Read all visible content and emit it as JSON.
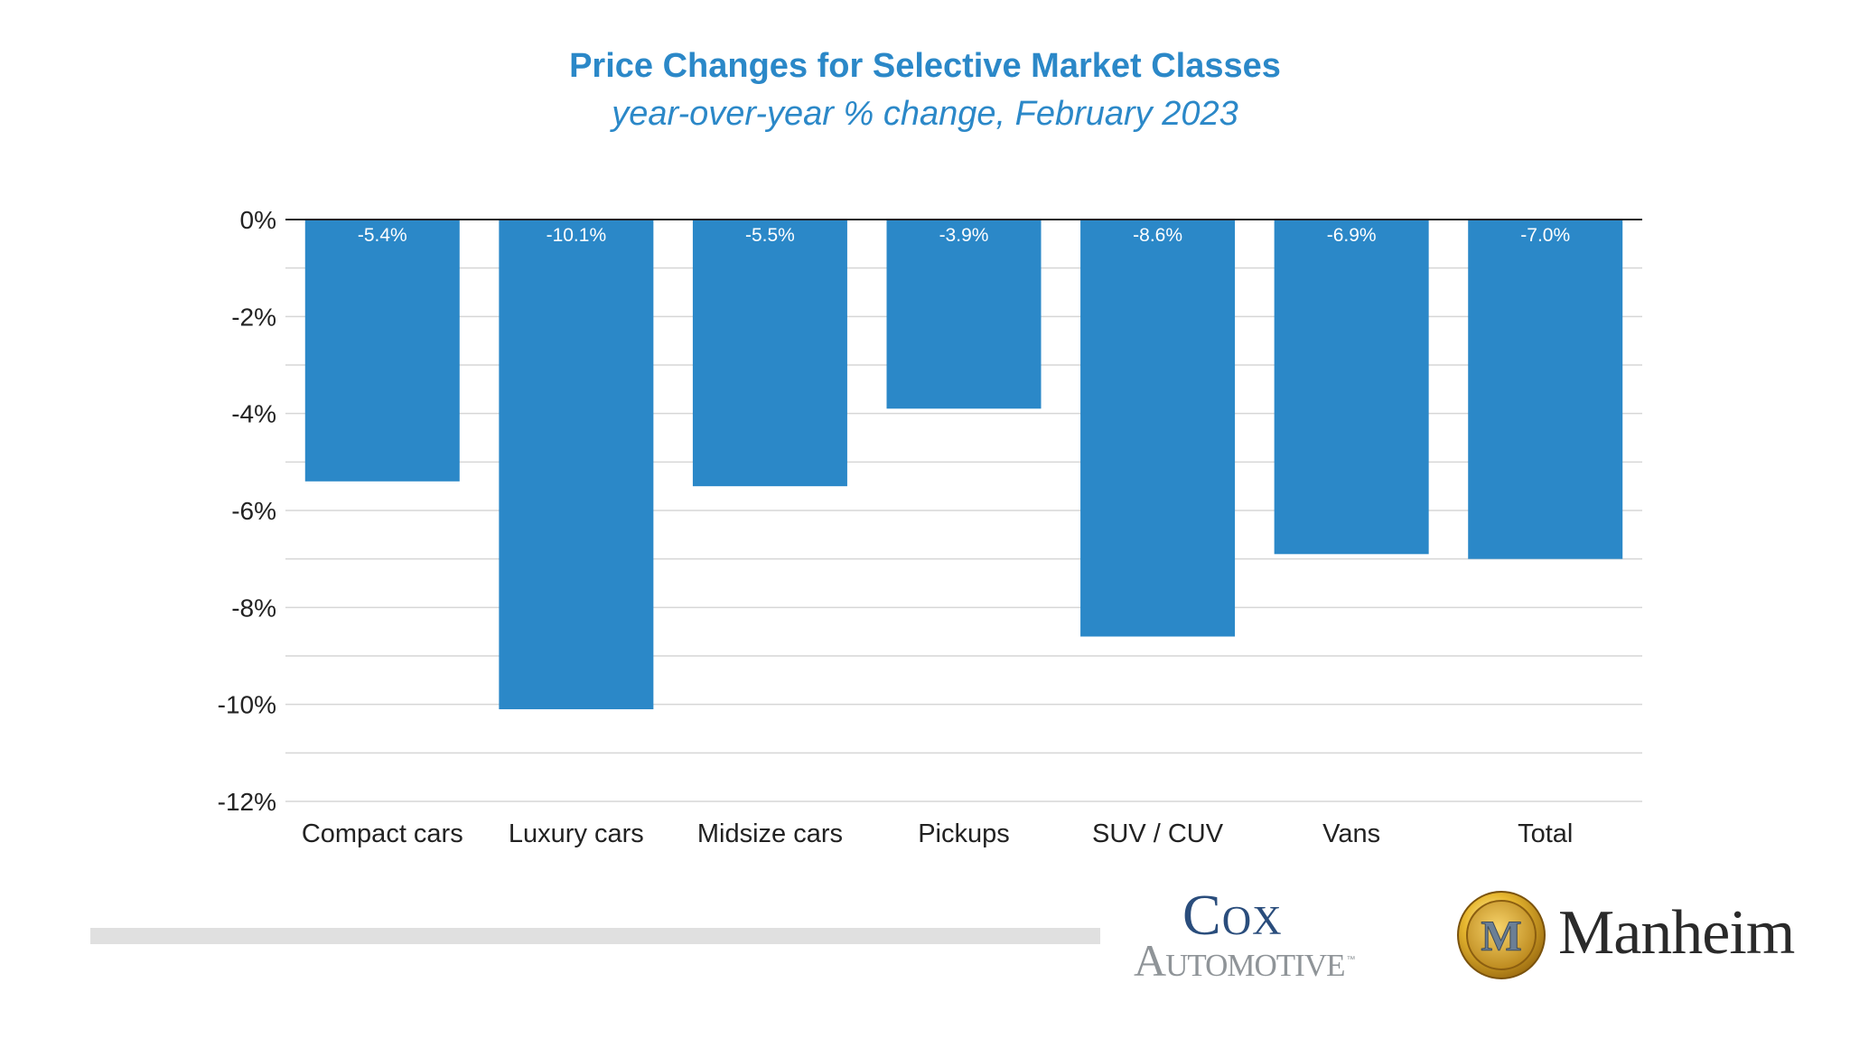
{
  "header": {
    "title": "Price Changes for Selective Market Classes",
    "subtitle": "year-over-year % change, February 2023"
  },
  "colors": {
    "title": "#2b88c8",
    "bar": "#2b88c8",
    "grid": "#d6d6d6",
    "axis": "#222222",
    "footer_bar": "#e0e0e0"
  },
  "chart_data": {
    "type": "bar",
    "title": "Price Changes for Selective Market Classes",
    "subtitle": "year-over-year % change, February 2023",
    "categories": [
      "Compact cars",
      "Luxury cars",
      "Midsize cars",
      "Pickups",
      "SUV / CUV",
      "Vans",
      "Total"
    ],
    "values": [
      -5.4,
      -10.1,
      -5.5,
      -3.9,
      -8.6,
      -6.9,
      -7.0
    ],
    "data_labels": [
      "-5.4%",
      "-10.1%",
      "-5.5%",
      "-3.9%",
      "-8.6%",
      "-6.9%",
      "-7.0%"
    ],
    "yticks": [
      0,
      -2,
      -4,
      -6,
      -8,
      -10,
      -12
    ],
    "ytick_labels": [
      "0%",
      "-2%",
      "-4%",
      "-6%",
      "-8%",
      "-10%",
      "-12%"
    ],
    "ylim": [
      -12,
      0
    ],
    "xlabel": "",
    "ylabel": "",
    "grid": true,
    "legend": "none"
  },
  "logos": {
    "cox_top": "Cox",
    "cox_bottom": "Automotive",
    "cox_tm": "™",
    "manheim": "Manheim",
    "manheim_emblem_letter": "M"
  }
}
